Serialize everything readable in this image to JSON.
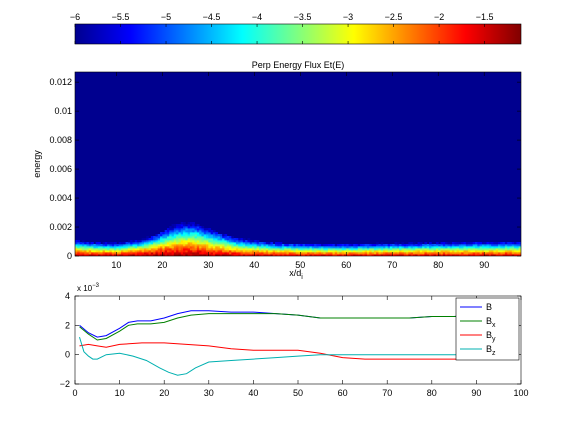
{
  "chart_data": [
    {
      "type": "heatmap",
      "title": "Perp Energy Flux Et(E)",
      "xlabel": "x/d",
      "xlabel_sub": "i",
      "ylabel": "energy",
      "xlim": [
        1,
        98
      ],
      "ylim": [
        0,
        0.0127
      ],
      "xticks": [
        10,
        20,
        30,
        40,
        50,
        60,
        70,
        80,
        90
      ],
      "xtick_labels": [
        "10",
        "20",
        "30",
        "40",
        "50",
        "60",
        "70",
        "80",
        "90"
      ],
      "yticks": [
        0,
        0.002,
        0.004,
        0.006,
        0.008,
        0.01,
        0.012
      ],
      "ytick_labels": [
        "0",
        "0.002",
        "0.004",
        "0.006",
        "0.008",
        "0.01",
        "0.012"
      ],
      "colorbar": {
        "range": [
          -6,
          -1.1
        ],
        "colormap": "jet",
        "ticks": [
          -6,
          -5.5,
          -5,
          -4.5,
          -4,
          -3.5,
          -3,
          -2.5,
          -2,
          -1.5
        ],
        "tick_labels": [
          "−6",
          "−5.5",
          "−5",
          "−4.5",
          "−4",
          "−3.5",
          "−3",
          "−2.5",
          "−2",
          "−1.5"
        ]
      },
      "background_value": -6,
      "spread_profile": {
        "x": [
          1,
          5,
          10,
          15,
          18,
          20,
          22,
          24,
          26,
          28,
          30,
          33,
          36,
          40,
          45,
          50,
          55,
          60,
          70,
          80,
          90,
          98
        ],
        "spread_energy": [
          0.0011,
          0.00095,
          0.0009,
          0.0011,
          0.0014,
          0.0017,
          0.002,
          0.0022,
          0.0023,
          0.0022,
          0.0019,
          0.0016,
          0.0013,
          0.0011,
          0.00095,
          0.0009,
          0.00085,
          0.00085,
          0.0009,
          0.00095,
          0.001,
          0.001
        ]
      },
      "peak_profile": {
        "x": [
          1,
          10,
          20,
          25,
          30,
          40,
          50,
          60,
          70,
          80,
          90,
          98
        ],
        "peak_value": [
          -1.3,
          -1.3,
          -1.15,
          -1.2,
          -1.3,
          -1.4,
          -1.45,
          -1.45,
          -1.4,
          -1.4,
          -1.4,
          -1.4
        ]
      }
    },
    {
      "type": "line",
      "xlim": [
        0,
        100
      ],
      "ylim": [
        -0.002,
        0.004
      ],
      "exponent_label": "x 10",
      "exponent_sup": "−3",
      "xticks": [
        0,
        10,
        20,
        30,
        40,
        50,
        60,
        70,
        80,
        90,
        100
      ],
      "xtick_labels": [
        "0",
        "10",
        "20",
        "30",
        "40",
        "50",
        "60",
        "70",
        "80",
        "90",
        "100"
      ],
      "yticks": [
        -0.002,
        0,
        0.002,
        0.004
      ],
      "ytick_labels": [
        "−2",
        "0",
        "2",
        "4"
      ],
      "legend_position": "top-right",
      "series": [
        {
          "name": "B",
          "color": "#0000ff",
          "x": [
            1,
            3,
            5,
            7,
            10,
            12,
            14,
            17,
            20,
            23,
            26,
            30,
            35,
            40,
            45,
            50,
            55,
            60,
            65,
            70,
            75,
            80,
            85,
            90,
            95,
            98
          ],
          "values": [
            0.002,
            0.0015,
            0.0012,
            0.0013,
            0.0018,
            0.0022,
            0.0023,
            0.0023,
            0.0025,
            0.0028,
            0.003,
            0.003,
            0.0029,
            0.0029,
            0.0028,
            0.0027,
            0.0025,
            0.0025,
            0.0025,
            0.0025,
            0.0025,
            0.0026,
            0.0026,
            0.0027,
            0.0027,
            0.0027
          ]
        },
        {
          "name": "B_x",
          "color": "#008000",
          "x": [
            1,
            3,
            5,
            7,
            10,
            12,
            14,
            17,
            20,
            23,
            26,
            30,
            35,
            40,
            45,
            50,
            55,
            60,
            65,
            70,
            75,
            80,
            85,
            90,
            95,
            98
          ],
          "values": [
            0.0019,
            0.0014,
            0.001,
            0.0011,
            0.0016,
            0.002,
            0.0021,
            0.0021,
            0.0022,
            0.0025,
            0.0027,
            0.0028,
            0.0028,
            0.0028,
            0.0028,
            0.0027,
            0.0025,
            0.0025,
            0.0025,
            0.0025,
            0.0025,
            0.0026,
            0.0026,
            0.0027,
            0.0027,
            0.0027
          ]
        },
        {
          "name": "B_y",
          "color": "#ff0000",
          "x": [
            1,
            3,
            5,
            7,
            10,
            15,
            20,
            25,
            30,
            35,
            40,
            45,
            50,
            55,
            60,
            65,
            70,
            75,
            80,
            85,
            90,
            95,
            98
          ],
          "values": [
            0.0006,
            0.0007,
            0.0006,
            0.0005,
            0.0007,
            0.0008,
            0.0008,
            0.0007,
            0.0006,
            0.0004,
            0.0003,
            0.0003,
            0.0003,
            0.0001,
            -0.0002,
            -0.0003,
            -0.0003,
            -0.0003,
            -0.0003,
            -0.0003,
            -0.0003,
            -0.0003,
            -0.0003
          ]
        },
        {
          "name": "B_z",
          "color": "#00b0b0",
          "x": [
            1,
            2,
            3,
            4,
            5,
            7,
            10,
            13,
            16,
            19,
            21,
            23,
            25,
            27,
            30,
            35,
            40,
            45,
            50,
            55,
            60,
            65,
            70,
            75,
            80,
            85,
            90,
            95,
            98
          ],
          "values": [
            0.0012,
            0.0002,
            -0.0001,
            -0.0003,
            -0.0003,
            0.0,
            0.0001,
            -0.0001,
            -0.0004,
            -0.0009,
            -0.0012,
            -0.0014,
            -0.0013,
            -0.0009,
            -0.0005,
            -0.0004,
            -0.0003,
            -0.0002,
            -0.0001,
            0.0,
            0.0,
            0.0,
            0.0,
            0.0,
            0.0,
            0.0,
            0.0,
            0.0,
            0.0
          ]
        }
      ]
    }
  ]
}
